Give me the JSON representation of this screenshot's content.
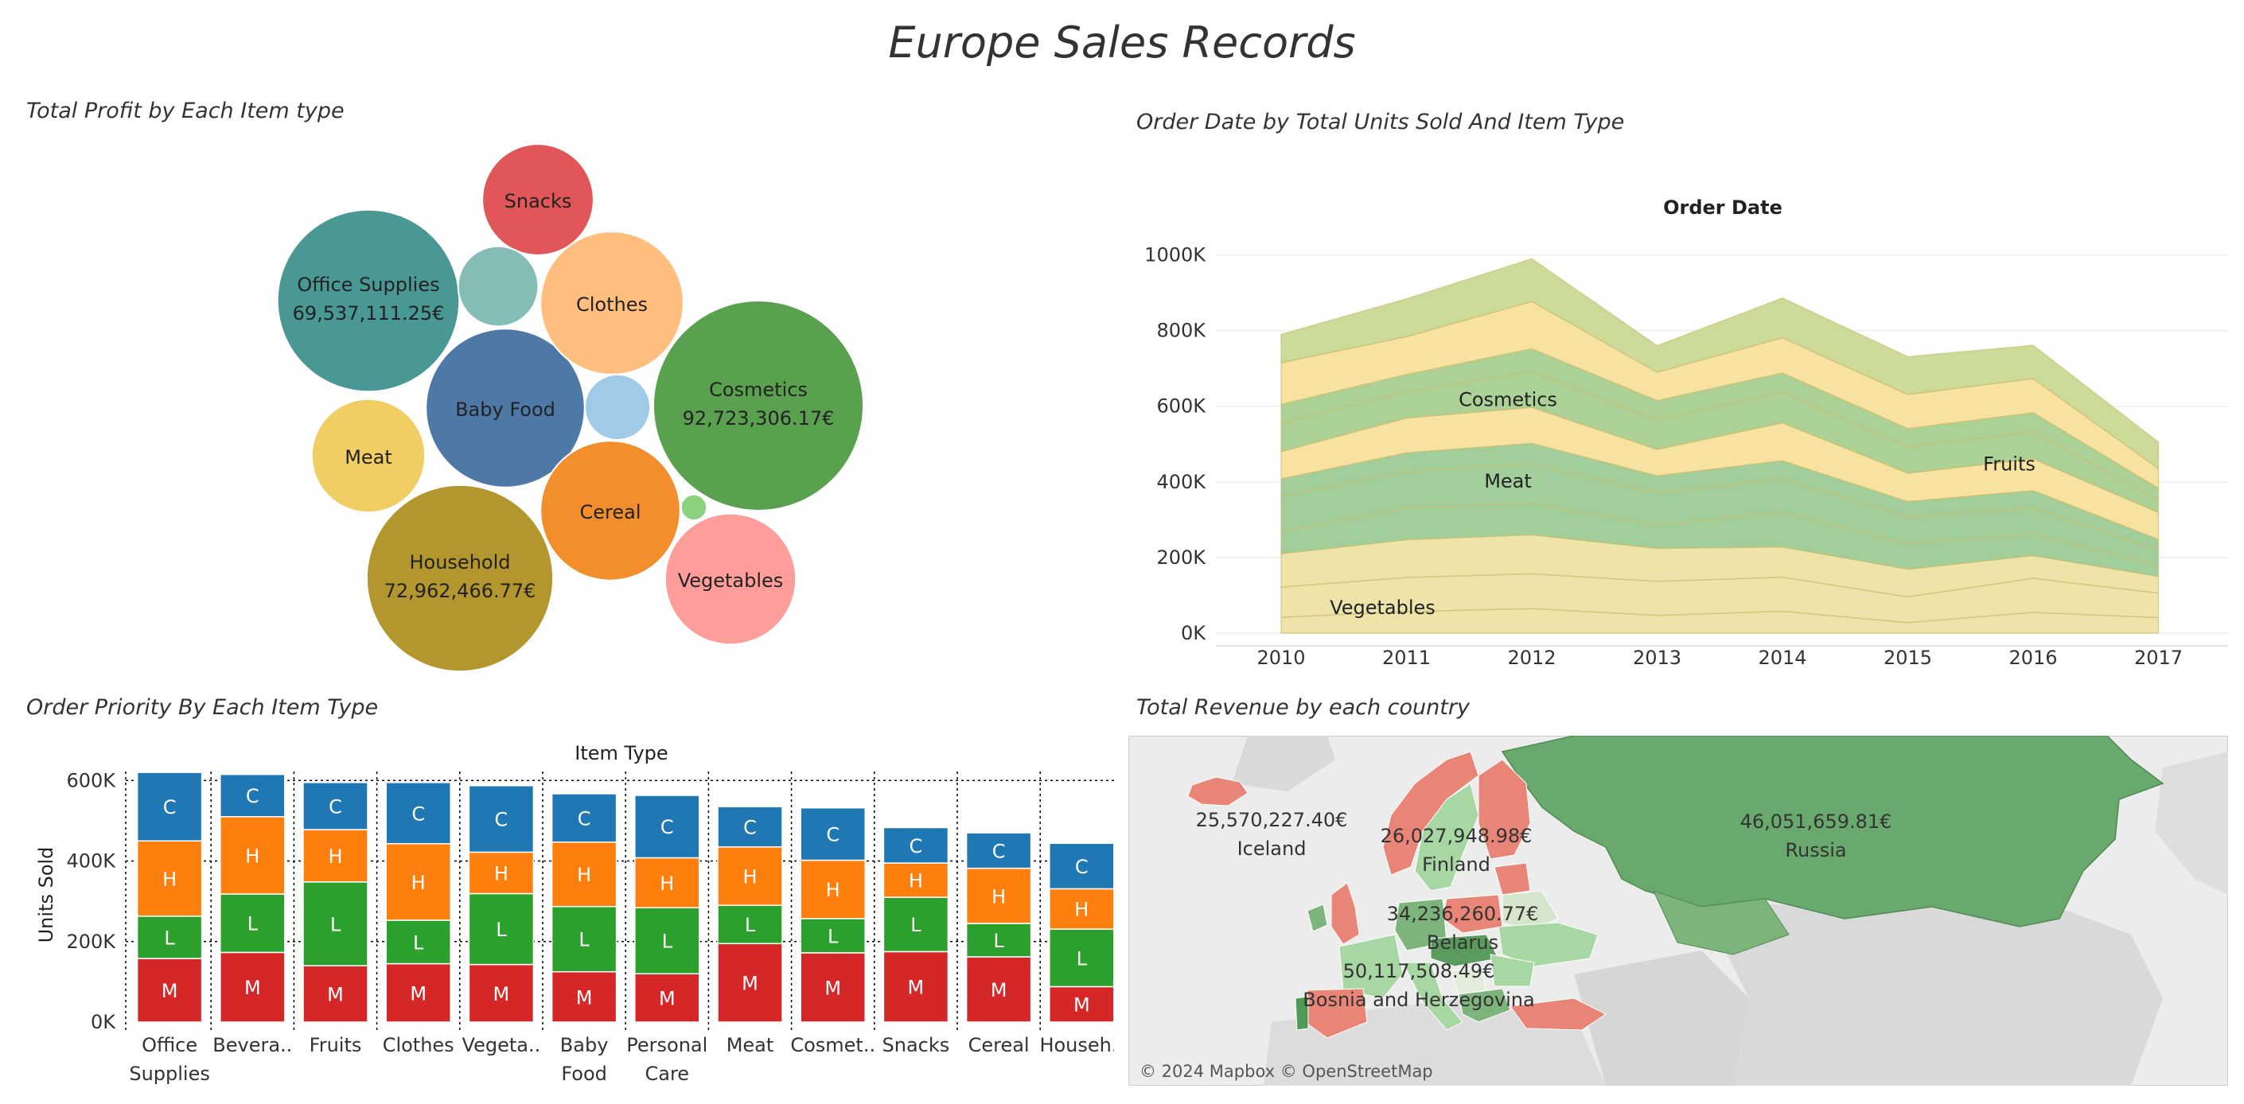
{
  "page_title": "Europe Sales Records",
  "chart_data": [
    {
      "type": "bubble",
      "title": "Total Profit by Each Item type",
      "bubbles": [
        {
          "label": "Cosmetics",
          "value_label": "92,723,306.17€",
          "value": 92723306.17,
          "color": "#59a14f"
        },
        {
          "label": "Household",
          "value_label": "72,962,466.77€",
          "value": 72962466.77,
          "color": "#b3962e"
        },
        {
          "label": "Office Supplies",
          "value_label": "69,537,111.25€",
          "value": 69537111.25,
          "color": "#499894"
        },
        {
          "label": "Baby Food",
          "value_label": "",
          "value": 53000000,
          "color": "#4e79a7"
        },
        {
          "label": "Cereal",
          "value_label": "",
          "value": 41000000,
          "color": "#f28e2b"
        },
        {
          "label": "Clothes",
          "value_label": "",
          "value": 43000000,
          "color": "#ffbe7d"
        },
        {
          "label": "Vegetables",
          "value_label": "",
          "value": 36000000,
          "color": "#ff9d9a"
        },
        {
          "label": "Meat",
          "value_label": "",
          "value": 27000000,
          "color": "#f1ce63"
        },
        {
          "label": "Snacks",
          "value_label": "",
          "value": 26000000,
          "color": "#e15759"
        },
        {
          "label": "",
          "value_label": "",
          "value": 13500000,
          "color": "#86bcb6"
        },
        {
          "label": "",
          "value_label": "",
          "value": 9000000,
          "color": "#a0cbe8"
        },
        {
          "label": "",
          "value_label": "",
          "value": 1400000,
          "color": "#8cd17d"
        }
      ]
    },
    {
      "type": "area",
      "title": "Order Date by Total Units Sold And Item Type",
      "header": "Order Date",
      "x": [
        "2010",
        "2011",
        "2012",
        "2013",
        "2014",
        "2015",
        "2016",
        "2017"
      ],
      "y_ticks": [
        "0K",
        "200K",
        "400K",
        "600K",
        "800K",
        "1000K"
      ],
      "ylim": [
        0,
        1100000
      ],
      "layers": [
        {
          "color": "#ede2a2",
          "values": [
            42000,
            57000,
            65000,
            47000,
            58000,
            28000,
            55000,
            41000
          ]
        },
        {
          "color": "#ede2a2",
          "values": [
            80000,
            90000,
            92000,
            90000,
            90000,
            68000,
            90000,
            65000
          ]
        },
        {
          "color": "#ede2a2",
          "values": [
            88000,
            100000,
            103000,
            87000,
            80000,
            73000,
            60000,
            44000
          ]
        },
        {
          "color": "#99ca91",
          "values": [
            58000,
            85000,
            82000,
            62000,
            92000,
            67000,
            58000,
            30000
          ]
        },
        {
          "color": "#99ca91",
          "values": [
            95000,
            95000,
            105000,
            85000,
            88000,
            72000,
            68000,
            40000
          ]
        },
        {
          "color": "#99ca91",
          "values": [
            45000,
            50000,
            55000,
            45000,
            48000,
            40000,
            46000,
            28000
          ]
        },
        {
          "color": "#f6e09a",
          "values": [
            72000,
            92000,
            95000,
            70000,
            100000,
            75000,
            84000,
            71000
          ]
        },
        {
          "color": "#a5cd8e",
          "values": [
            75000,
            70000,
            95000,
            77000,
            82000,
            70000,
            72000,
            34000
          ]
        },
        {
          "color": "#a5cd8e",
          "values": [
            50000,
            45000,
            60000,
            52000,
            50000,
            48000,
            50000,
            30000
          ]
        },
        {
          "color": "#f6e09a",
          "values": [
            110000,
            100000,
            125000,
            75000,
            93000,
            90000,
            90000,
            52000
          ]
        },
        {
          "color": "#c8d791",
          "values": [
            75000,
            100000,
            113000,
            70000,
            105000,
            100000,
            88000,
            70000
          ]
        }
      ],
      "annotations": [
        {
          "text": "Cosmetics",
          "x": "2012",
          "y": 600000
        },
        {
          "text": "Meat",
          "x": "2012",
          "y": 385000
        },
        {
          "text": "Fruits",
          "x": "2016",
          "y": 430000
        },
        {
          "text": "Vegetables",
          "x": "2011",
          "y": 50000
        }
      ]
    },
    {
      "type": "stacked_bar",
      "title": "Order Priority By Each Item Type",
      "header": "Item Type",
      "ylabel": "Units Sold",
      "y_ticks": [
        "0K",
        "200K",
        "400K",
        "600K"
      ],
      "ylim": [
        0,
        640000
      ],
      "categories": [
        [
          "Office",
          "Supplies"
        ],
        [
          "Bevera.."
        ],
        [
          "Fruits"
        ],
        [
          "Clothes"
        ],
        [
          "Vegeta.."
        ],
        [
          "Baby",
          "Food"
        ],
        [
          "Personal",
          "Care"
        ],
        [
          "Meat"
        ],
        [
          "Cosmet.."
        ],
        [
          "Snacks"
        ],
        [
          "Cereal"
        ],
        [
          "Househ.."
        ]
      ],
      "series": [
        {
          "name": "M",
          "color": "#d62728",
          "values": [
            158000,
            173000,
            140000,
            145000,
            143000,
            125000,
            120000,
            195000,
            172000,
            175000,
            162000,
            88000
          ]
        },
        {
          "name": "L",
          "color": "#2ca02c",
          "values": [
            105000,
            145000,
            208000,
            108000,
            176000,
            162000,
            164000,
            95000,
            85000,
            135000,
            83000,
            143000
          ]
        },
        {
          "name": "H",
          "color": "#ff7f0e",
          "values": [
            187000,
            192000,
            130000,
            190000,
            103000,
            160000,
            124000,
            145000,
            145000,
            85000,
            137000,
            100000
          ]
        },
        {
          "name": "C",
          "color": "#1f77b4",
          "values": [
            170000,
            105000,
            117000,
            152000,
            165000,
            120000,
            155000,
            100000,
            130000,
            88000,
            88000,
            113000
          ]
        }
      ]
    },
    {
      "type": "map",
      "title": "Total Revenue by each country",
      "attribution": "© 2024 Mapbox © OpenStreetMap",
      "labels": [
        {
          "value": "25,570,227.40€",
          "country": "Iceland"
        },
        {
          "value": "26,027,948.98€",
          "country": "Finland"
        },
        {
          "value": "46,051,659.81€",
          "country": "Russia"
        },
        {
          "value": "34,236,260.77€",
          "country": "Belarus"
        },
        {
          "value": "50,117,508.49€",
          "country": "Bosnia and Herzegovina"
        }
      ]
    }
  ]
}
